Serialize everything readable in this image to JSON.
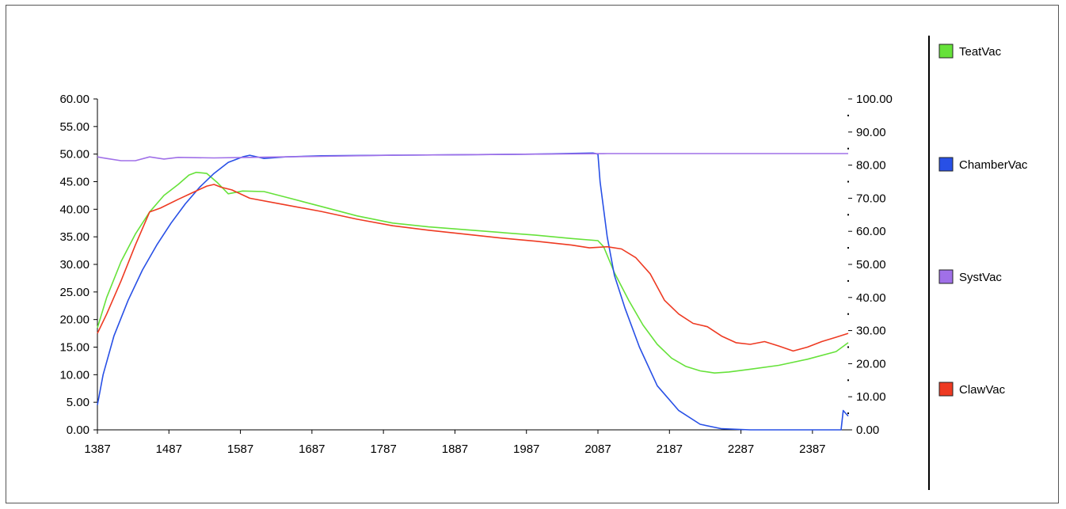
{
  "chart_data": {
    "type": "line",
    "xlim": [
      1387,
      2437
    ],
    "x_ticks": [
      "1387",
      "1487",
      "1587",
      "1687",
      "1787",
      "1887",
      "1987",
      "2087",
      "2187",
      "2287",
      "2387"
    ],
    "y_left": {
      "range": [
        0,
        60
      ],
      "ticks": [
        "0.00",
        "5.00",
        "10.00",
        "15.00",
        "20.00",
        "25.00",
        "30.00",
        "35.00",
        "40.00",
        "45.00",
        "50.00",
        "55.00",
        "60.00"
      ]
    },
    "y_right": {
      "range": [
        0,
        100
      ],
      "ticks": [
        "0.00",
        "10.00",
        "20.00",
        "30.00",
        "40.00",
        "50.00",
        "60.00",
        "70.00",
        "80.00",
        "90.00",
        "100.00"
      ]
    },
    "grid": false,
    "legend_position": "right",
    "series": [
      {
        "name": "TeatVac",
        "color": "#66e23a",
        "axis": "left",
        "x": [
          1387,
          1400,
          1420,
          1440,
          1460,
          1480,
          1500,
          1515,
          1525,
          1540,
          1555,
          1570,
          1590,
          1620,
          1650,
          1700,
          1750,
          1800,
          1850,
          1900,
          1950,
          2000,
          2050,
          2087,
          2095,
          2110,
          2130,
          2150,
          2170,
          2190,
          2210,
          2230,
          2250,
          2270,
          2300,
          2340,
          2380,
          2420,
          2437
        ],
        "y": [
          18.5,
          24,
          30.5,
          35.5,
          39.5,
          42.5,
          44.5,
          46.2,
          46.7,
          46.5,
          44.8,
          42.8,
          43.3,
          43.2,
          42.2,
          40.5,
          38.8,
          37.5,
          36.8,
          36.3,
          35.8,
          35.3,
          34.7,
          34.3,
          33.2,
          28.5,
          23.5,
          19,
          15.5,
          13,
          11.5,
          10.7,
          10.3,
          10.5,
          11,
          11.7,
          12.8,
          14.2,
          15.8
        ]
      },
      {
        "name": "ChamberVac",
        "color": "#2850e6",
        "axis": "left",
        "x": [
          1387,
          1395,
          1410,
          1430,
          1450,
          1470,
          1490,
          1510,
          1530,
          1550,
          1570,
          1590,
          1600,
          1620,
          1650,
          1700,
          1800,
          1900,
          2000,
          2080,
          2087,
          2090,
          2100,
          2110,
          2125,
          2145,
          2170,
          2200,
          2230,
          2260,
          2300,
          2350,
          2400,
          2427,
          2430,
          2437
        ],
        "y": [
          4.5,
          10,
          17,
          23.5,
          29,
          33.5,
          37.5,
          41,
          44,
          46.5,
          48.5,
          49.5,
          49.8,
          49.2,
          49.5,
          49.7,
          49.8,
          49.9,
          50,
          50.2,
          50,
          45,
          35,
          28,
          22,
          15,
          8,
          3.5,
          1,
          0.2,
          0,
          0,
          0,
          0,
          3.5,
          2.5
        ]
      },
      {
        "name": "SystVac",
        "color": "#a070e8",
        "axis": "left",
        "x": [
          1387,
          1400,
          1420,
          1440,
          1460,
          1480,
          1500,
          1550,
          1600,
          1700,
          1800,
          1900,
          2000,
          2100,
          2200,
          2300,
          2400,
          2437
        ],
        "y": [
          49.5,
          49.2,
          48.8,
          48.8,
          49.5,
          49.1,
          49.4,
          49.3,
          49.4,
          49.6,
          49.8,
          49.9,
          50,
          50.1,
          50.1,
          50.1,
          50.1,
          50.1
        ]
      },
      {
        "name": "ClawVac",
        "color": "#ee3a22",
        "axis": "left",
        "x": [
          1387,
          1400,
          1420,
          1440,
          1460,
          1475,
          1500,
          1520,
          1540,
          1550,
          1560,
          1575,
          1600,
          1650,
          1700,
          1750,
          1800,
          1850,
          1900,
          1950,
          2000,
          2050,
          2075,
          2100,
          2120,
          2140,
          2160,
          2180,
          2200,
          2220,
          2240,
          2260,
          2280,
          2300,
          2320,
          2340,
          2360,
          2380,
          2400,
          2420,
          2437
        ],
        "y": [
          17.5,
          21,
          27,
          33.5,
          39.5,
          40.2,
          41.8,
          43,
          44.2,
          44.5,
          44,
          43.5,
          42,
          40.8,
          39.6,
          38.2,
          37,
          36.2,
          35.5,
          34.8,
          34.2,
          33.5,
          33,
          33.2,
          32.8,
          31.2,
          28.3,
          23.5,
          21,
          19.3,
          18.7,
          17,
          15.8,
          15.5,
          16,
          15.2,
          14.3,
          15,
          16,
          16.8,
          17.5
        ]
      }
    ]
  }
}
